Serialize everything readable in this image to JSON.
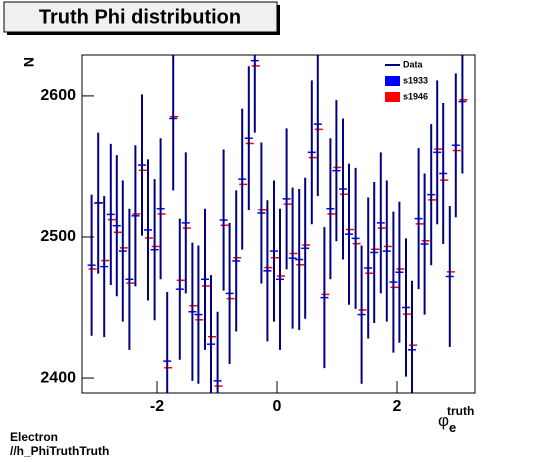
{
  "chart_data": {
    "type": "errorbar",
    "title": "Truth Phi distribution",
    "y_label": "N",
    "x_label": {
      "base": "φ",
      "sub": "e",
      "sup": "truth"
    },
    "notes": [
      "Electron",
      "//h_PhiTruthTruth"
    ],
    "legend": "top-right",
    "xlim": [
      -3.25,
      3.3
    ],
    "ylim": [
      2389.4,
      2629
    ],
    "xticks": [
      -2,
      0,
      2
    ],
    "yticks": [
      2400,
      2500,
      2600
    ],
    "x": [
      -3.09,
      -2.98,
      -2.88,
      -2.77,
      -2.67,
      -2.57,
      -2.46,
      -2.36,
      -2.25,
      -2.15,
      -2.04,
      -1.94,
      -1.83,
      -1.73,
      -1.62,
      -1.52,
      -1.41,
      -1.31,
      -1.2,
      -1.1,
      -0.99,
      -0.89,
      -0.79,
      -0.68,
      -0.58,
      -0.47,
      -0.37,
      -0.26,
      -0.16,
      -0.05,
      0.05,
      0.16,
      0.26,
      0.37,
      0.47,
      0.58,
      0.68,
      0.79,
      0.89,
      0.99,
      1.1,
      1.2,
      1.31,
      1.41,
      1.52,
      1.62,
      1.73,
      1.83,
      1.94,
      2.04,
      2.15,
      2.25,
      2.36,
      2.46,
      2.57,
      2.67,
      2.77,
      2.88,
      2.98,
      3.09
    ],
    "series": [
      {
        "name": "Data",
        "color": "#000080",
        "values": [
          2480,
          2524,
          2479,
          2516,
          2508,
          2490,
          2470,
          2515,
          2551,
          2505,
          2491,
          2520,
          2412,
          2584,
          2463,
          2510,
          2447,
          2445,
          2470,
          2424,
          2398,
          2512,
          2460,
          2483,
          2541,
          2570,
          2625,
          2517,
          2476,
          2490,
          2470,
          2527,
          2485,
          2484,
          2492,
          2560,
          2580,
          2457,
          2520,
          2547,
          2534,
          2502,
          2499,
          2445,
          2478,
          2489,
          2510,
          2490,
          2468,
          2475,
          2450,
          2420,
          2513,
          2495,
          2530,
          2560,
          2545,
          2472,
          2565,
          2596
        ],
        "errors": [
          50,
          50,
          50,
          50,
          50,
          50,
          50,
          50,
          50,
          50,
          50,
          50,
          49,
          51,
          50,
          50,
          49,
          49,
          50,
          49,
          49,
          50,
          50,
          50,
          50,
          51,
          51,
          50,
          50,
          50,
          50,
          50,
          50,
          50,
          50,
          51,
          51,
          50,
          50,
          50,
          50,
          50,
          50,
          49,
          50,
          50,
          50,
          50,
          50,
          50,
          49,
          49,
          50,
          50,
          50,
          51,
          50,
          50,
          51,
          51
        ]
      },
      {
        "name": "s1933",
        "color": "#0000ff",
        "values": [
          2480,
          2524,
          2479,
          2516,
          2508,
          2490,
          2470,
          2515,
          2551,
          2505,
          2491,
          2520,
          2412,
          2584,
          2463,
          2510,
          2447,
          2445,
          2470,
          2424,
          2398,
          2512,
          2460,
          2483,
          2541,
          2570,
          2625,
          2517,
          2476,
          2490,
          2470,
          2527,
          2485,
          2484,
          2492,
          2560,
          2580,
          2457,
          2520,
          2547,
          2534,
          2502,
          2499,
          2445,
          2478,
          2489,
          2510,
          2490,
          2468,
          2475,
          2450,
          2420,
          2513,
          2495,
          2530,
          2560,
          2545,
          2472,
          2565,
          2596
        ]
      },
      {
        "name": "s1946",
        "color": "#ff0000",
        "values": [
          2478,
          2525,
          2484,
          2513,
          2504,
          2493,
          2468,
          2517,
          2548,
          2500,
          2494,
          2517,
          2408,
          2586,
          2470,
          2507,
          2452,
          2442,
          2466,
          2430,
          2395,
          2509,
          2457,
          2486,
          2538,
          2567,
          2622,
          2520,
          2479,
          2486,
          2473,
          2524,
          2489,
          2481,
          2495,
          2557,
          2577,
          2460,
          2517,
          2550,
          2531,
          2506,
          2496,
          2449,
          2475,
          2492,
          2507,
          2494,
          2465,
          2478,
          2446,
          2424,
          2510,
          2498,
          2527,
          2563,
          2541,
          2476,
          2562,
          2598
        ]
      }
    ]
  }
}
